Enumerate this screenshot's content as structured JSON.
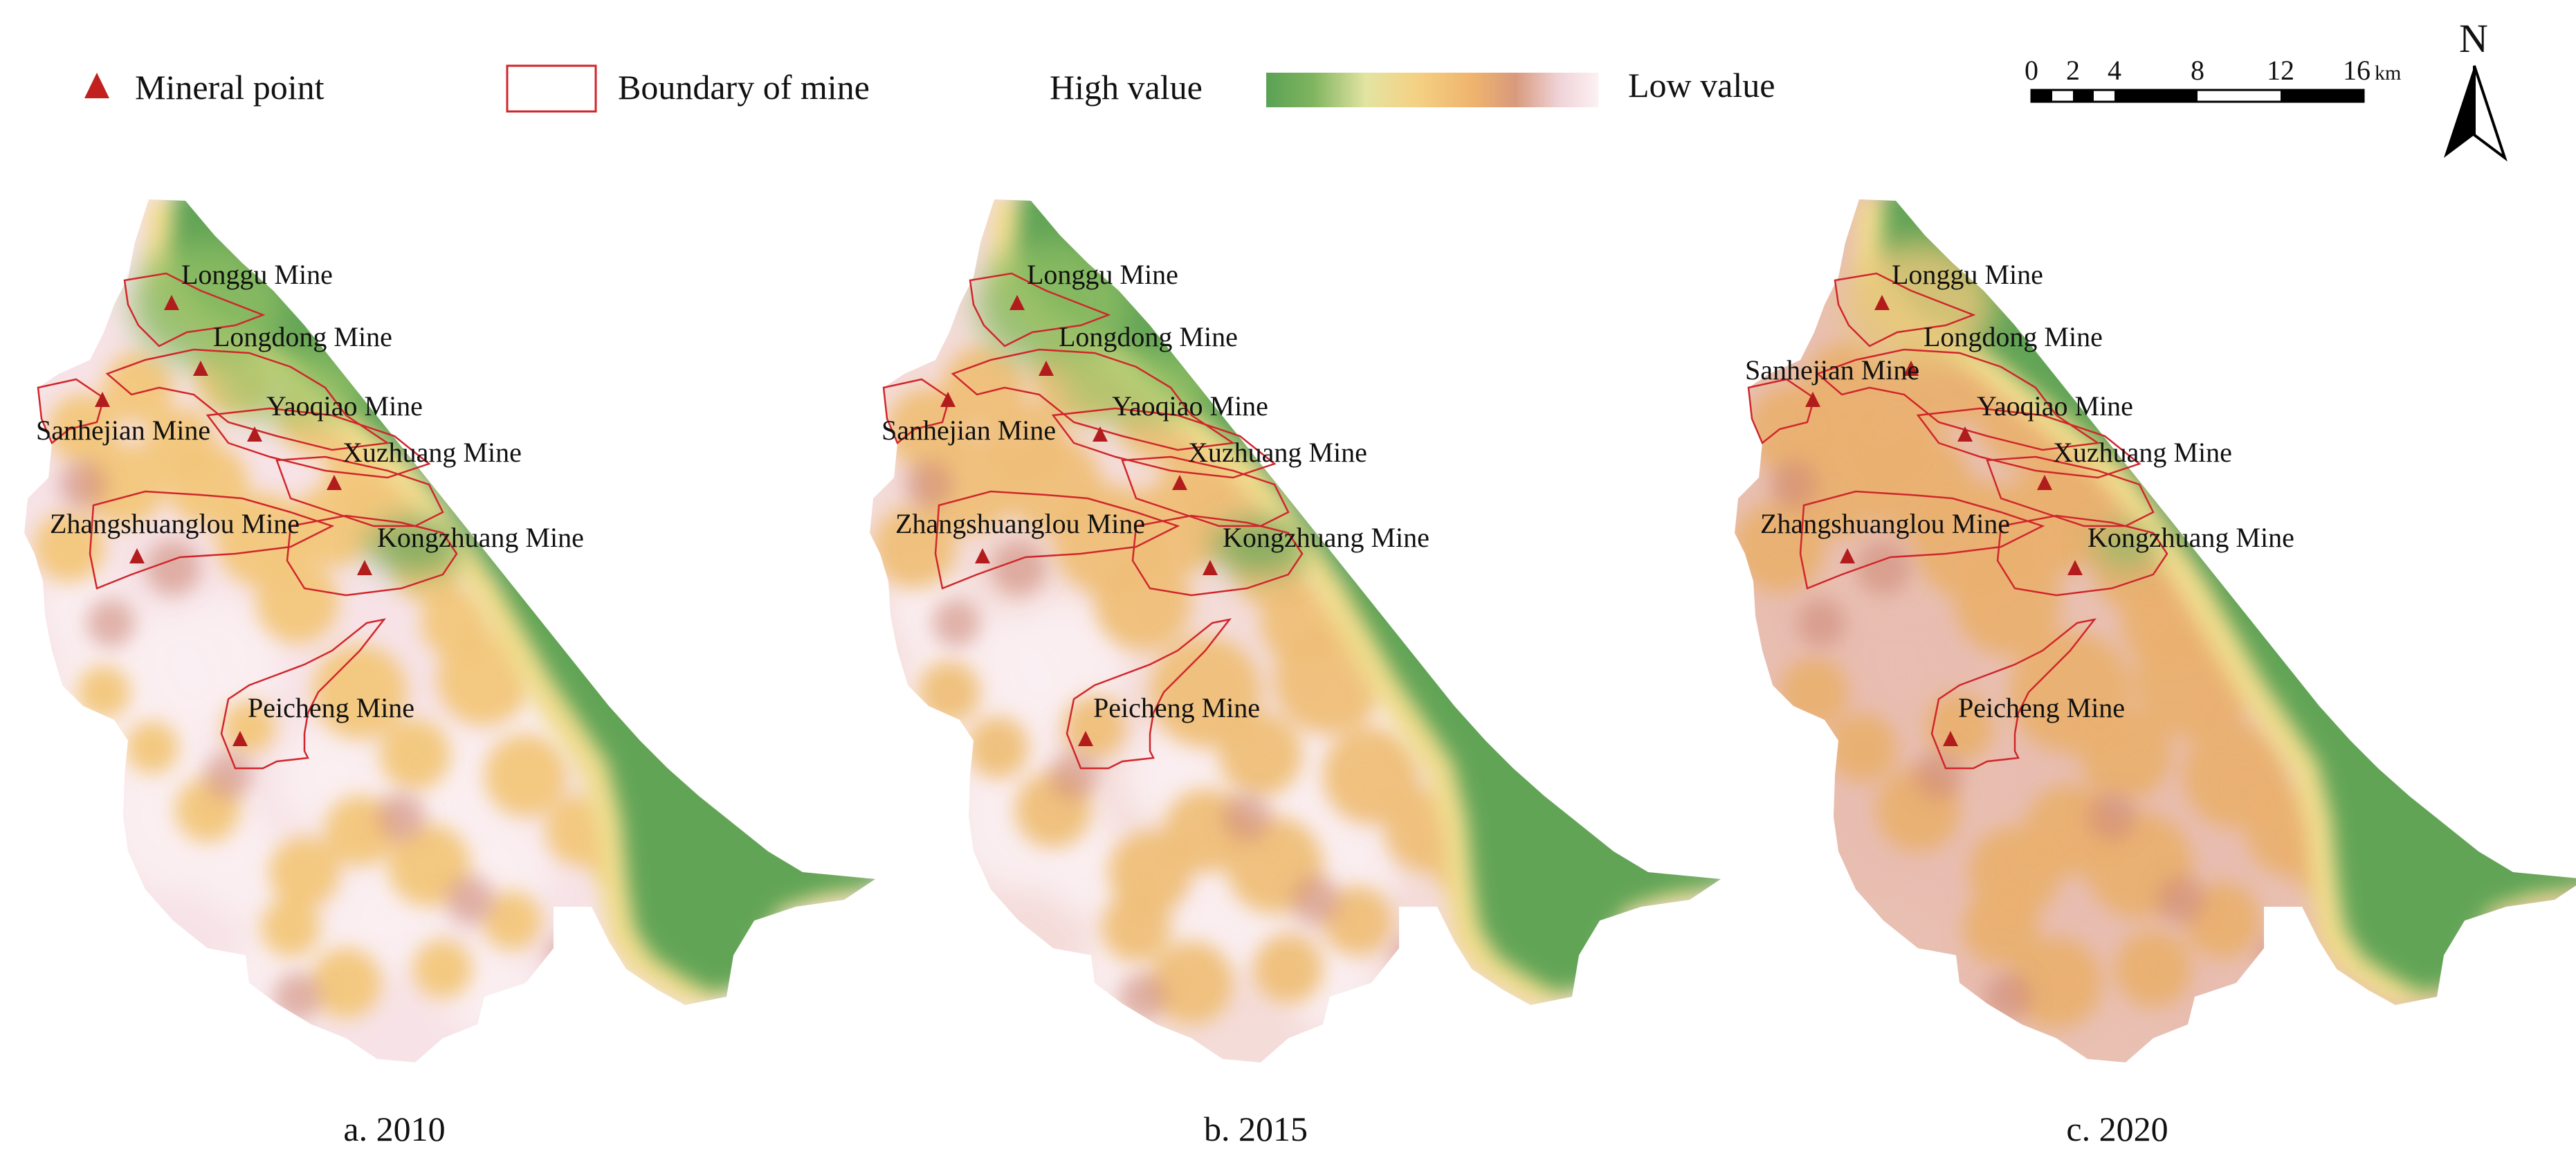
{
  "legend": {
    "mineral_point": "Mineral point",
    "boundary_of_mine": "Boundary of mine",
    "high_value": "High value",
    "low_value": "Low value",
    "ramp_colors": [
      "#5aa255",
      "#7fb45f",
      "#dfe3a0",
      "#f4d184",
      "#efb56e",
      "#d69a7c",
      "#efd1d6",
      "#fbeff1"
    ]
  },
  "scale_bar": {
    "ticks": [
      "0",
      "2",
      "4",
      "8",
      "12",
      "16"
    ],
    "unit": "km"
  },
  "north_arrow": {
    "label": "N"
  },
  "colors": {
    "mine_boundary": "#d0262b",
    "mineral_point": "#b31c1c",
    "high": "#5a9c4f",
    "mid": "#f2c67a",
    "low": "#f8e6ea"
  },
  "panels": [
    {
      "caption": "a. 2010",
      "mines": [
        "Longgu Mine",
        "Longdong Mine",
        "Yaoqiao Mine",
        "Sanhejian Mine",
        "Xuzhuang Mine",
        "Zhangshuanglou Mine",
        "Kongzhuang Mine",
        "Peicheng Mine"
      ]
    },
    {
      "caption": "b. 2015",
      "mines": [
        "Longgu Mine",
        "Longdong Mine",
        "Yaoqiao Mine",
        "Sanhejian Mine",
        "Xuzhuang Mine",
        "Zhangshuanglou Mine",
        "Kongzhuang Mine",
        "Peicheng Mine"
      ]
    },
    {
      "caption": "c. 2020",
      "mines": [
        "Longgu Mine",
        "Longdong Mine",
        "Sanhejian Mine",
        "Yaoqiao Mine",
        "Xuzhuang Mine",
        "Zhangshuanglou Mine",
        "Kongzhuang Mine",
        "Peicheng Mine"
      ]
    }
  ]
}
